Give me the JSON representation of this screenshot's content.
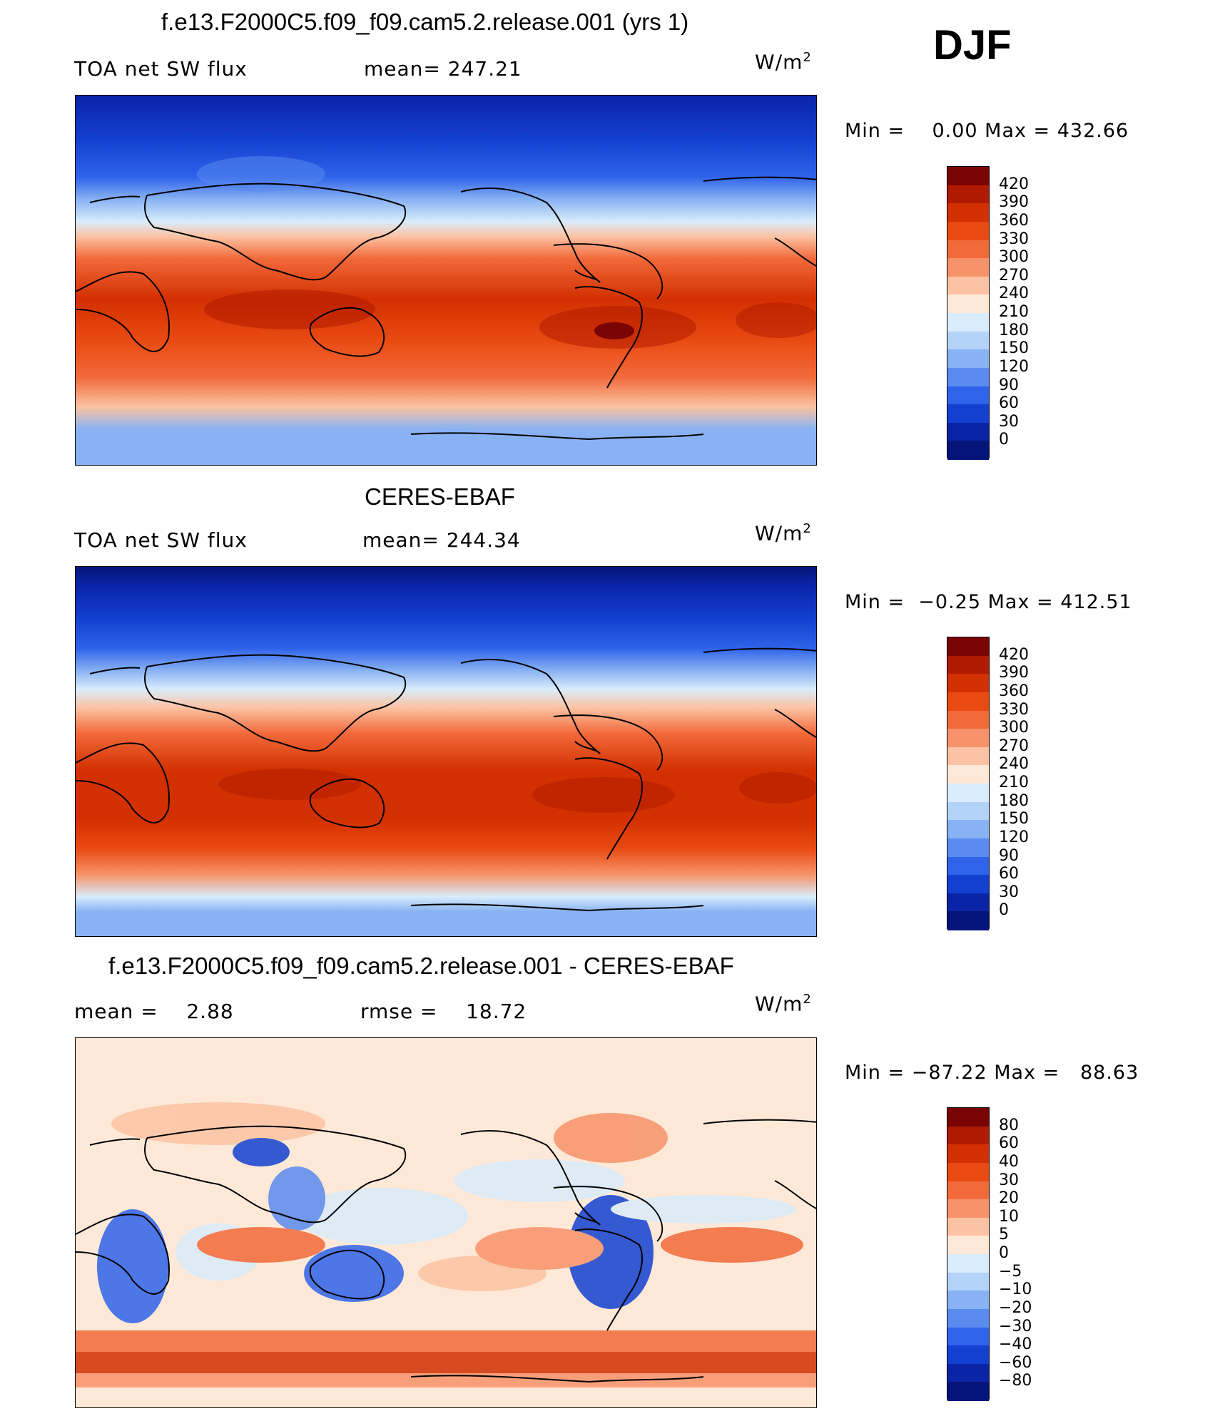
{
  "season": "DJF",
  "panels": [
    {
      "id": "model",
      "title": "f.e13.F2000C5.f09_f09.cam5.2.release.001 (yrs 1)",
      "left_label": "TOA net SW flux",
      "center_label": "mean= 247.21",
      "unit": "W/m",
      "unit_exp": "2",
      "minmax": "Min =    0.00 Max = 432.66",
      "colorbar": {
        "levels": [
          "420",
          "390",
          "360",
          "330",
          "300",
          "270",
          "240",
          "210",
          "180",
          "150",
          "120",
          "90",
          "60",
          "30",
          "0"
        ],
        "colors": [
          "#7a0403",
          "#b01a00",
          "#d23000",
          "#e94a12",
          "#f2693a",
          "#f7936a",
          "#fbc3a3",
          "#fee9d8",
          "#d9ecfb",
          "#b4d3f8",
          "#88b2f3",
          "#5a8bef",
          "#2f63ea",
          "#1340d0",
          "#0a24a8",
          "#041478"
        ]
      }
    },
    {
      "id": "obs",
      "title": "CERES-EBAF",
      "left_label": "TOA net SW flux",
      "center_label": "mean= 244.34",
      "unit": "W/m",
      "unit_exp": "2",
      "minmax": "Min =  −0.25 Max = 412.51",
      "colorbar": {
        "levels": [
          "420",
          "390",
          "360",
          "330",
          "300",
          "270",
          "240",
          "210",
          "180",
          "150",
          "120",
          "90",
          "60",
          "30",
          "0"
        ],
        "colors": [
          "#7a0403",
          "#b01a00",
          "#d23000",
          "#e94a12",
          "#f2693a",
          "#f7936a",
          "#fbc3a3",
          "#fee9d8",
          "#d9ecfb",
          "#b4d3f8",
          "#88b2f3",
          "#5a8bef",
          "#2f63ea",
          "#1340d0",
          "#0a24a8",
          "#041478"
        ]
      }
    },
    {
      "id": "diff",
      "title": "f.e13.F2000C5.f09_f09.cam5.2.release.001 - CERES-EBAF",
      "left_label": "mean =    2.88",
      "center_label": "rmse =    18.72",
      "unit": "W/m",
      "unit_exp": "2",
      "minmax": "Min = −87.22 Max =   88.63",
      "colorbar": {
        "levels": [
          "80",
          "60",
          "40",
          "30",
          "20",
          "10",
          "5",
          "0",
          "−5",
          "−10",
          "−20",
          "−30",
          "−40",
          "−60",
          "−80"
        ],
        "colors": [
          "#7a0403",
          "#b01a00",
          "#d23000",
          "#e94a12",
          "#f2693a",
          "#f7936a",
          "#fbc3a3",
          "#fee9d8",
          "#d9ecfb",
          "#b4d3f8",
          "#88b2f3",
          "#5a8bef",
          "#2f63ea",
          "#1340d0",
          "#0a24a8",
          "#041478"
        ]
      }
    }
  ]
}
